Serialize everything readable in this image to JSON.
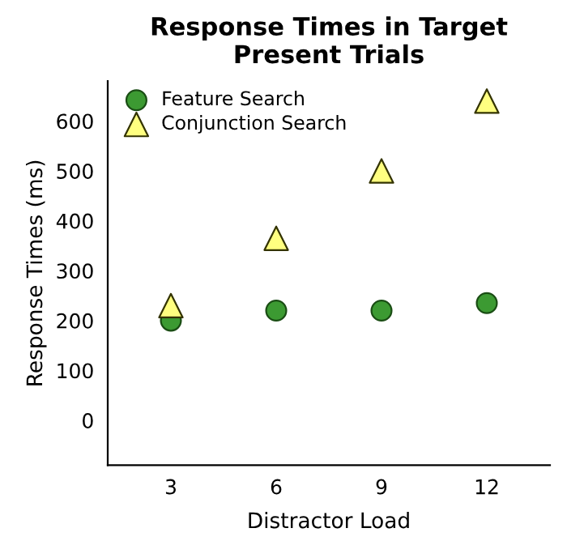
{
  "chart_data": {
    "type": "scatter",
    "title": "Response Times in Target\nPresent Trials",
    "xlabel": "Distractor Load",
    "ylabel": "Response Times (ms)",
    "categories": [
      "3",
      "6",
      "9",
      "12"
    ],
    "series": [
      {
        "name": "Feature Search",
        "color": "#3c9a32",
        "marker": "circle",
        "values": [
          200,
          220,
          220,
          235
        ]
      },
      {
        "name": "Conjunction Search",
        "color": "#ffff80",
        "marker": "triangle",
        "values": [
          230,
          365,
          500,
          640
        ]
      }
    ],
    "ylim": [
      -90,
      680
    ],
    "yticks": [
      0,
      100,
      200,
      300,
      400,
      500,
      600
    ],
    "grid": false,
    "legend": "top left"
  }
}
